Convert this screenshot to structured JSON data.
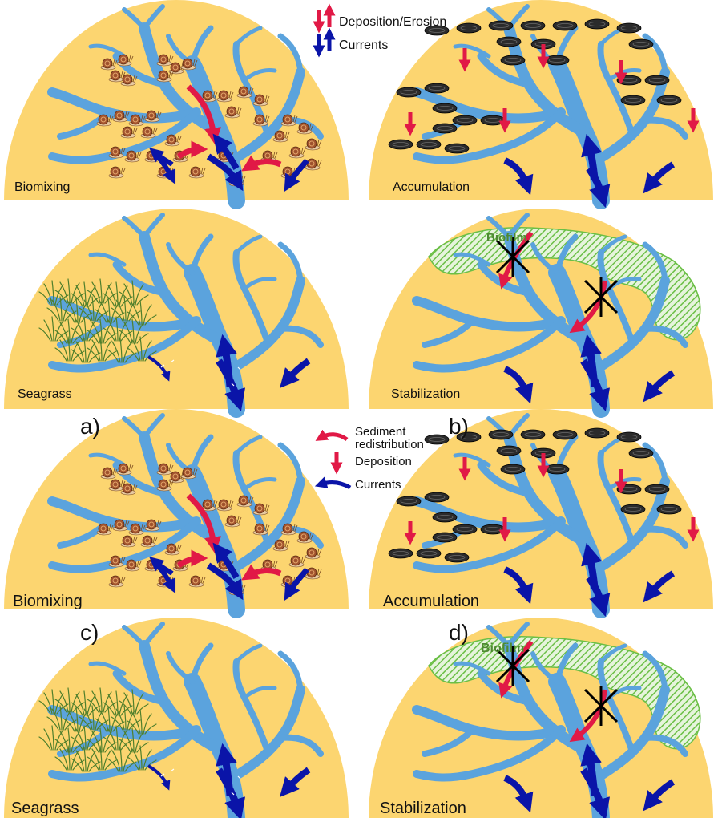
{
  "legend_top": {
    "deposition_erosion": "Deposition/Erosion",
    "currents": "Currents"
  },
  "legend_mid": {
    "sediment_line1": "Sediment",
    "sediment_line2": "redistribution",
    "deposition": "Deposition",
    "currents": "Currents"
  },
  "panel_letters": {
    "a": "a)",
    "b": "b)",
    "c": "c)",
    "d": "d)"
  },
  "process_labels": {
    "biomixing": "Biomixing",
    "accumulation": "Accumulation",
    "seagrass": "Seagrass",
    "stabilization": "Stabilization",
    "biofilm": "Biofilm"
  },
  "colors": {
    "sediment": "#fcd570",
    "channel": "#5ba3dd",
    "deposition_arrow": "#e11946",
    "current_arrow": "#0a14a8",
    "biofilm": "#6bbf46",
    "seagrass": "#5f8c3a",
    "snail_shell": "#a0522d",
    "mussel": "#2b2b2b"
  }
}
